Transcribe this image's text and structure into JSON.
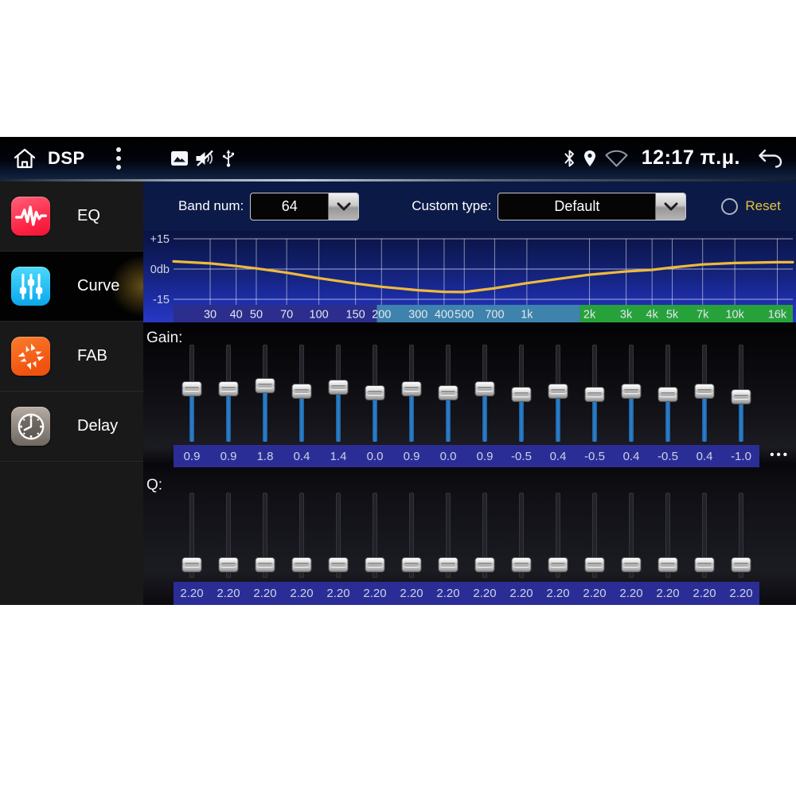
{
  "status_bar": {
    "app_title": "DSP",
    "time": "12:17 π.μ.",
    "icons": [
      "home-icon",
      "overflow-menu-icon",
      "photo-icon",
      "volume-muted-icon",
      "usb-icon",
      "bluetooth-icon",
      "location-icon",
      "wifi-icon",
      "back-icon"
    ]
  },
  "sidebar": {
    "items": [
      {
        "label": "EQ",
        "icon": "eq-waveform-icon",
        "color": "#fb2242",
        "selected": false
      },
      {
        "label": "Curve",
        "icon": "sliders-icon",
        "color": "#18b4f1",
        "selected": true
      },
      {
        "label": "FAB",
        "icon": "pinwheel-icon",
        "color": "#f0520f",
        "selected": false
      },
      {
        "label": "Delay",
        "icon": "clock-icon",
        "color": "#8d857e",
        "selected": false
      }
    ]
  },
  "controls": {
    "band_num_label": "Band num:",
    "band_num_value": "64",
    "custom_type_label": "Custom type:",
    "custom_type_value": "Default",
    "reset_label": "Reset"
  },
  "chart_data": {
    "type": "line",
    "title": "EQ frequency response curve",
    "ylabel": "db",
    "y_tick_labels": [
      "+15",
      "0db",
      "-15"
    ],
    "ylim": [
      -15,
      15
    ],
    "freq_range": [
      20,
      19000
    ],
    "x_ticks": [
      {
        "f": 30,
        "label": "30"
      },
      {
        "f": 40,
        "label": "40"
      },
      {
        "f": 50,
        "label": "50"
      },
      {
        "f": 70,
        "label": "70"
      },
      {
        "f": 100,
        "label": "100"
      },
      {
        "f": 150,
        "label": "150"
      },
      {
        "f": 200,
        "label": "200"
      },
      {
        "f": 300,
        "label": "300"
      },
      {
        "f": 400,
        "label": "400"
      },
      {
        "f": 500,
        "label": "500"
      },
      {
        "f": 700,
        "label": "700"
      },
      {
        "f": 1000,
        "label": "1k"
      },
      {
        "f": 2000,
        "label": "2k"
      },
      {
        "f": 3000,
        "label": "3k"
      },
      {
        "f": 4000,
        "label": "4k"
      },
      {
        "f": 5000,
        "label": "5k"
      },
      {
        "f": 7000,
        "label": "7k"
      },
      {
        "f": 10000,
        "label": "10k"
      },
      {
        "f": 16000,
        "label": "16k"
      }
    ],
    "band_colors": [
      {
        "from": 20,
        "to": 190,
        "color": "#2b2e8c"
      },
      {
        "from": 190,
        "to": 1800,
        "color": "#3e83ab"
      },
      {
        "from": 1800,
        "to": 19000,
        "color": "#27a23b"
      }
    ],
    "curve_color": "#efb93c",
    "grid": true,
    "points": [
      {
        "f": 20,
        "db": 3.8
      },
      {
        "f": 30,
        "db": 2.8
      },
      {
        "f": 40,
        "db": 1.5
      },
      {
        "f": 50,
        "db": 0.3
      },
      {
        "f": 70,
        "db": -1.8
      },
      {
        "f": 100,
        "db": -4.5
      },
      {
        "f": 150,
        "db": -7.2
      },
      {
        "f": 200,
        "db": -8.8
      },
      {
        "f": 300,
        "db": -10.5
      },
      {
        "f": 400,
        "db": -11.3
      },
      {
        "f": 500,
        "db": -11.4
      },
      {
        "f": 700,
        "db": -9.5
      },
      {
        "f": 1000,
        "db": -7.0
      },
      {
        "f": 2000,
        "db": -2.8
      },
      {
        "f": 3000,
        "db": -1.2
      },
      {
        "f": 4000,
        "db": -0.4
      },
      {
        "f": 5000,
        "db": 0.8
      },
      {
        "f": 7000,
        "db": 2.3
      },
      {
        "f": 10000,
        "db": 3.0
      },
      {
        "f": 16000,
        "db": 3.4
      },
      {
        "f": 19000,
        "db": 3.4
      }
    ]
  },
  "gain": {
    "label": "Gain:",
    "range": [
      -15,
      15
    ],
    "values": [
      "0.9",
      "0.9",
      "1.8",
      "0.4",
      "1.4",
      "0.0",
      "0.9",
      "0.0",
      "0.9",
      "-0.5",
      "0.4",
      "-0.5",
      "0.4",
      "-0.5",
      "0.4",
      "-1.0"
    ],
    "more_label": "•••"
  },
  "q": {
    "label": "Q:",
    "range": [
      0,
      20
    ],
    "values": [
      "2.20",
      "2.20",
      "2.20",
      "2.20",
      "2.20",
      "2.20",
      "2.20",
      "2.20",
      "2.20",
      "2.20",
      "2.20",
      "2.20",
      "2.20",
      "2.20",
      "2.20",
      "2.20"
    ]
  },
  "colors": {
    "value_strip": "#2b2d97",
    "gain_fill": "#2f83cf",
    "reset_text": "#e7c33b",
    "selected_glow": "#ecbc34"
  }
}
